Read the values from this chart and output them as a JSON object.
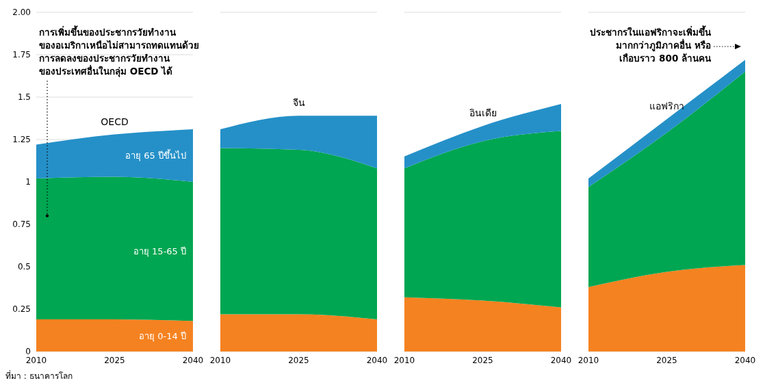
{
  "chart_data": [
    {
      "type": "area",
      "stacked": true,
      "title": "OECD",
      "x": [
        2010,
        2025,
        2040
      ],
      "xlim": [
        2010,
        2040
      ],
      "xticks": [
        2010,
        2025,
        2040
      ],
      "ylim": [
        0,
        2
      ],
      "yticks": [
        0,
        0.25,
        0.5,
        0.75,
        1,
        1.25,
        1.5,
        1.75,
        {
          "value": 2,
          "label": "2.00"
        }
      ],
      "grid": "y",
      "series": [
        {
          "name": "อายุ 0-14 ปี",
          "color": "#f58220",
          "values": [
            0.19,
            0.19,
            0.18
          ]
        },
        {
          "name": "อายุ 15-65 ปี",
          "color": "#00a651",
          "values": [
            0.83,
            0.84,
            0.82
          ]
        },
        {
          "name": "อายุ 65 ปีขึ้นไป",
          "color": "#2590c8",
          "values": [
            0.2,
            0.25,
            0.31
          ]
        }
      ],
      "annotations": [
        "การเพิ่มขึ้นของประชากรวัยทำงาน\nของอเมริกาเหนือไม่สามารถทดแทนด้วย\nการลดลงของประชากรวัยทำงาน\nของประเทศอื่นในกลุ่ม OECD ได้",
        "ที่มา : ธนาคารโลก"
      ]
    },
    {
      "type": "area",
      "stacked": true,
      "title": "จีน",
      "x": [
        2010,
        2025,
        2040
      ],
      "xlim": [
        2010,
        2040
      ],
      "xticks": [
        2010,
        2025,
        2040
      ],
      "ylim": [
        0,
        2
      ],
      "tick_labels": "x",
      "grid": "y",
      "series": [
        {
          "color": "#f58220",
          "values": [
            0.22,
            0.22,
            0.19
          ]
        },
        {
          "color": "#00a651",
          "values": [
            0.98,
            0.97,
            0.89
          ]
        },
        {
          "color": "#2590c8",
          "values": [
            0.11,
            0.2,
            0.31
          ]
        }
      ]
    },
    {
      "type": "area",
      "stacked": true,
      "title": "อินเดีย",
      "x": [
        2010,
        2025,
        2040
      ],
      "xlim": [
        2010,
        2040
      ],
      "xticks": [
        2010,
        2025,
        2040
      ],
      "ylim": [
        0,
        2
      ],
      "tick_labels": "x",
      "grid": "y",
      "series": [
        {
          "color": "#f58220",
          "values": [
            0.32,
            0.3,
            0.26
          ]
        },
        {
          "color": "#00a651",
          "values": [
            0.76,
            0.94,
            1.04
          ]
        },
        {
          "color": "#2590c8",
          "values": [
            0.07,
            0.09,
            0.16
          ]
        }
      ]
    },
    {
      "type": "area",
      "stacked": true,
      "title": "แอฟริกา",
      "x": [
        2010,
        2025,
        2040
      ],
      "xlim": [
        2010,
        2040
      ],
      "xticks": [
        2010,
        2025,
        2040
      ],
      "ylim": [
        0,
        2
      ],
      "tick_labels": "x",
      "grid": "y",
      "series": [
        {
          "color": "#f58220",
          "values": [
            0.38,
            0.47,
            0.51
          ]
        },
        {
          "color": "#00a651",
          "values": [
            0.59,
            0.82,
            1.14
          ]
        },
        {
          "color": "#2590c8",
          "values": [
            0.05,
            0.08,
            0.07
          ]
        }
      ],
      "annotations": [
        "ประชากรในแอฟริกาจะเพิ่มขึ้น\nมากกว่าภูมิภาคอื่น หรือ\nเกือบราว 800 ล้านคน"
      ]
    }
  ]
}
